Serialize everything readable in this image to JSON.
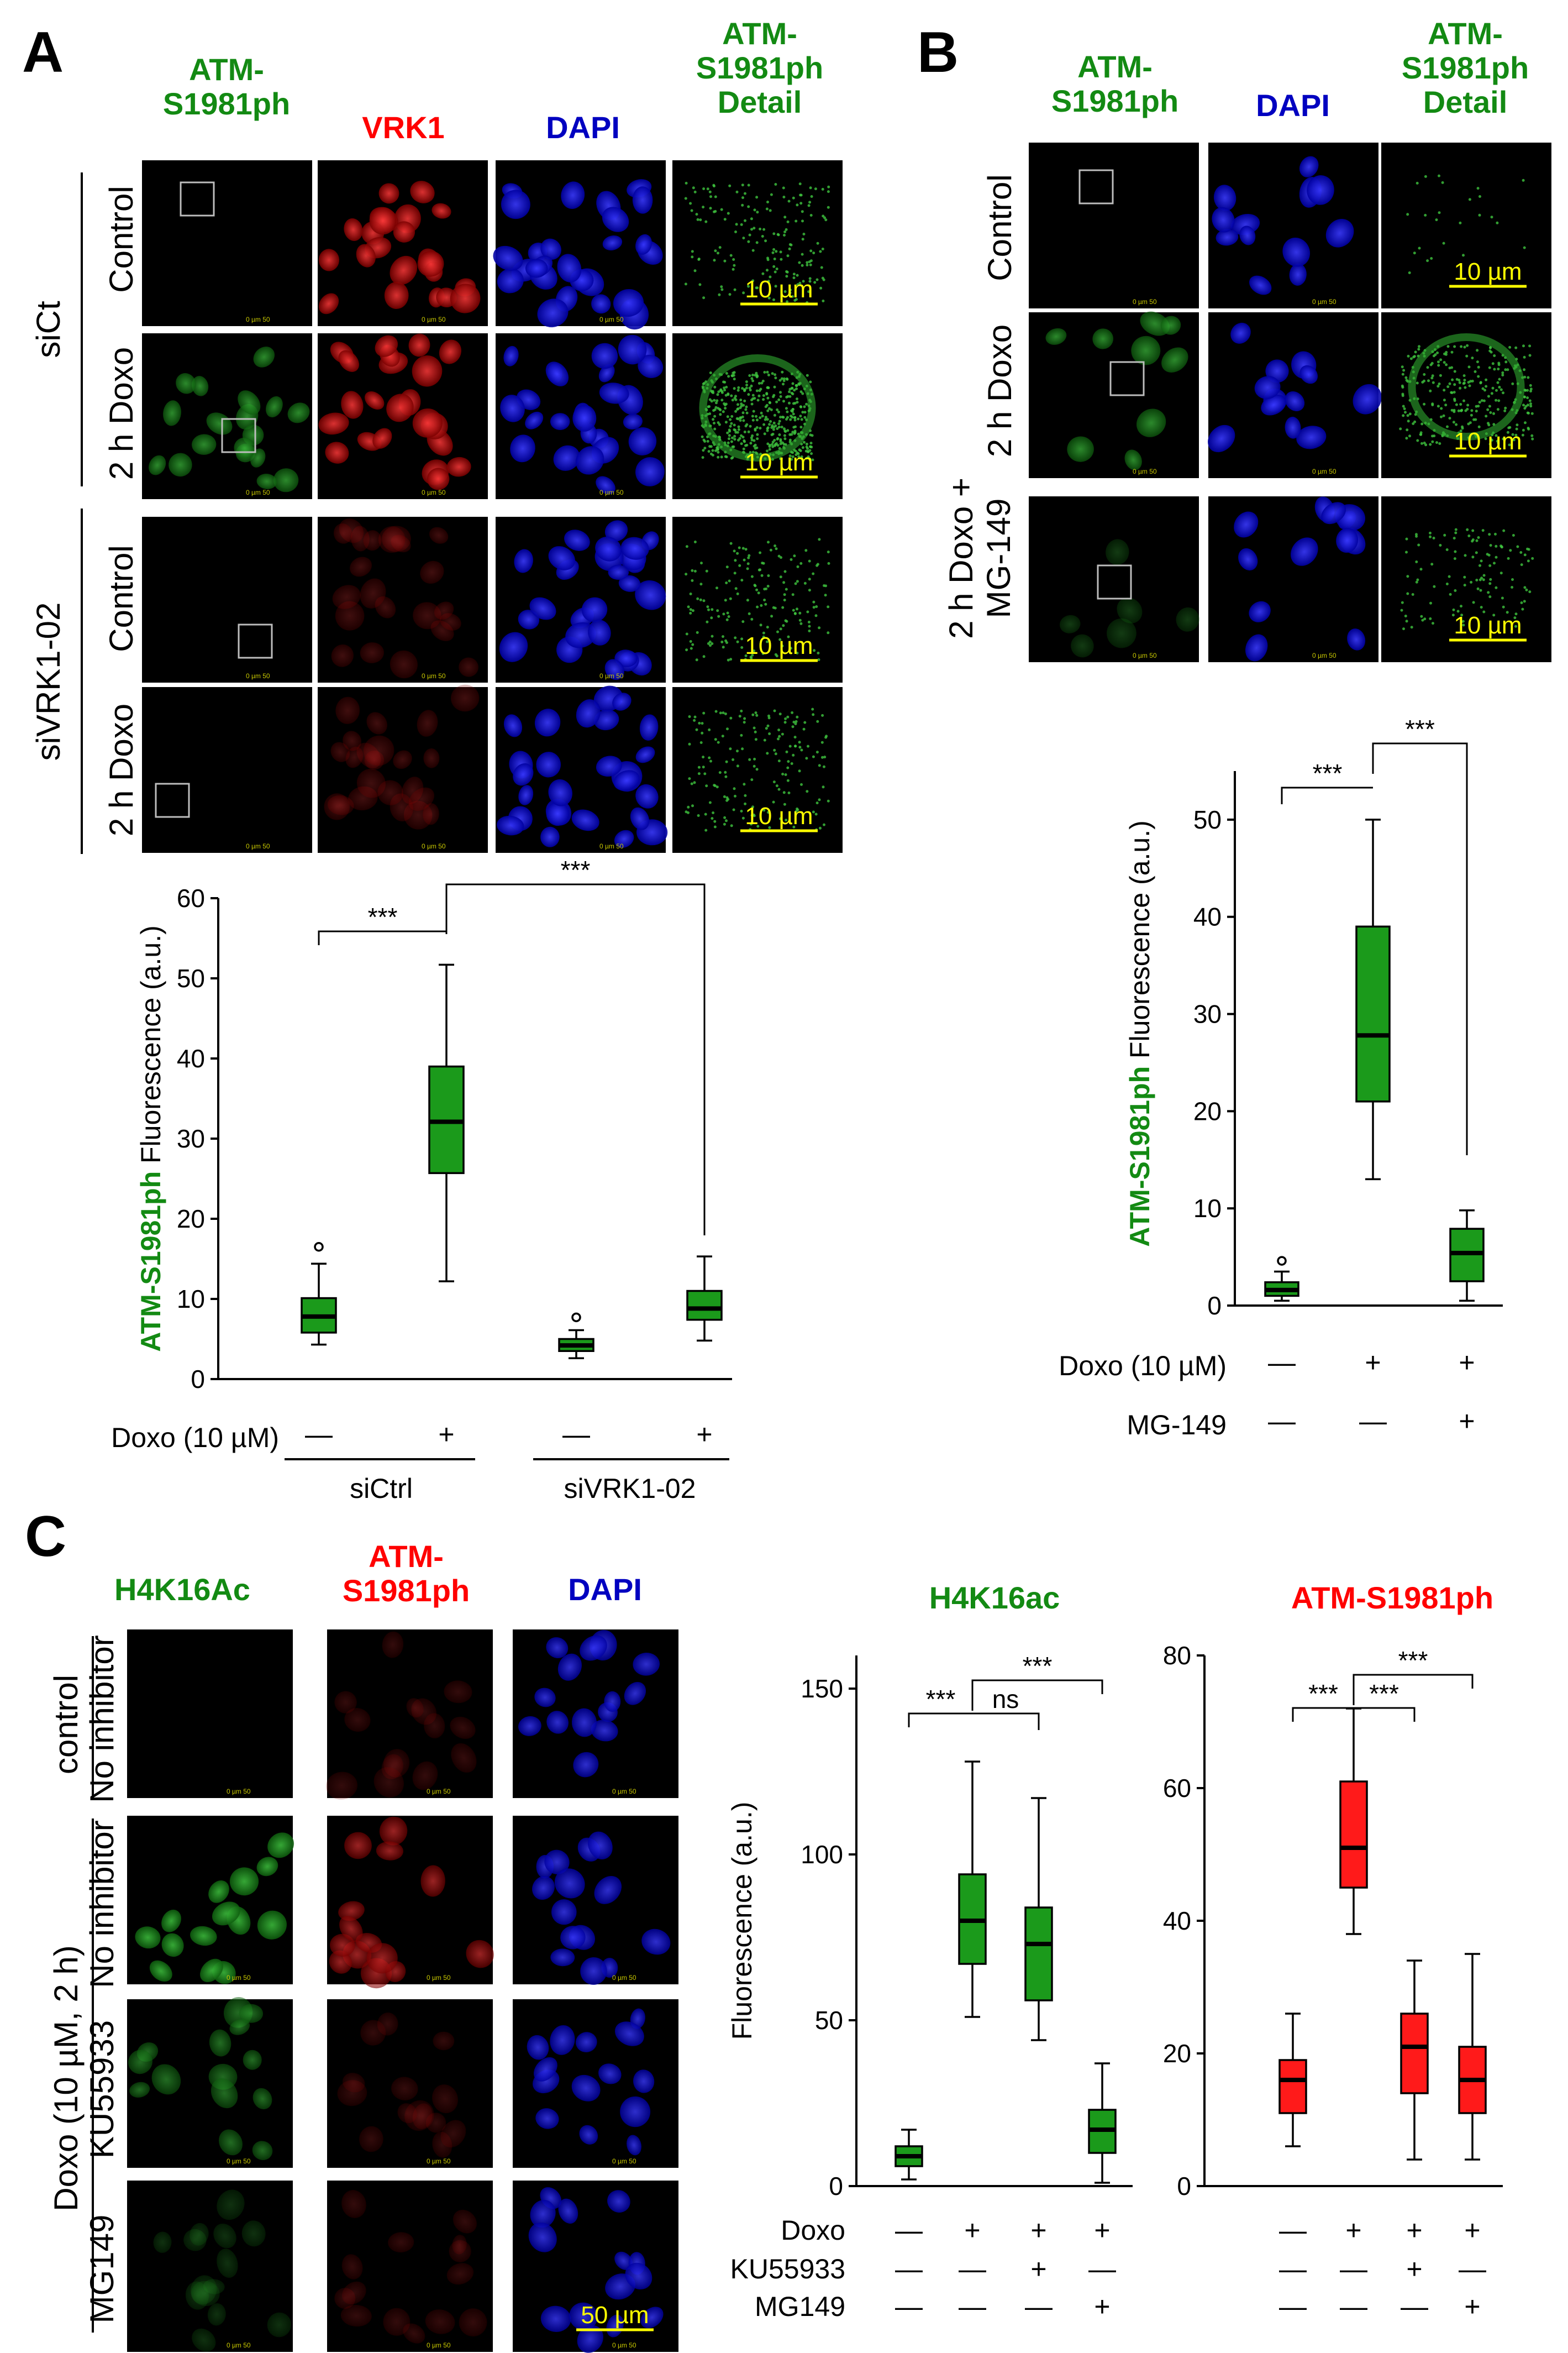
{
  "colors": {
    "green": "#138a13",
    "red": "#ff0000",
    "blue": "#0000c0",
    "yellow": "#ffff00",
    "box_green": "#1b9a1b",
    "box_red": "#ff1a1a"
  },
  "panelA": {
    "letter": "A",
    "headers": [
      "ATM-\nS1981ph",
      "VRK1",
      "DAPI",
      "ATM-\nS1981ph\nDetail"
    ],
    "groups": [
      "siCt",
      "siVRK1-02"
    ],
    "rows": [
      "Control",
      "2 h Doxo",
      "Control",
      "2 h Doxo"
    ],
    "scale": "10 µm",
    "micro_ticks": "0 µm 50",
    "chart": {
      "ylabel_colored": "ATM-S1981ph",
      "ylabel_plain": " Fluorescence (a.u.)",
      "yticks": [
        "0",
        "10",
        "20",
        "30",
        "40",
        "50",
        "60"
      ],
      "cond_label": "Doxo (10 µM)",
      "doxo": [
        "—",
        "+",
        "—",
        "+"
      ],
      "groups": [
        "siCtrl",
        "siVRK1-02"
      ],
      "sig": [
        "***",
        "***"
      ]
    }
  },
  "panelB": {
    "letter": "B",
    "headers": [
      "ATM-\nS1981ph",
      "DAPI",
      "ATM-\nS1981ph\nDetail"
    ],
    "rows": [
      "Control",
      "2 h Doxo",
      "2 h Doxo +\nMG-149"
    ],
    "scale": "10 µm",
    "chart": {
      "ylabel_colored": "ATM-S1981ph",
      "ylabel_plain": " Fluorescence (a.u.)",
      "yticks": [
        "0",
        "10",
        "20",
        "30",
        "40",
        "50"
      ],
      "cond1": "Doxo (10 µM)",
      "cond2": "MG-149",
      "doxo": [
        "—",
        "+",
        "+"
      ],
      "mg": [
        "—",
        "—",
        "+"
      ],
      "sig": [
        "***",
        "***"
      ]
    }
  },
  "panelC": {
    "letter": "C",
    "headers": [
      "H4K16Ac",
      "ATM-\nS1981ph",
      "DAPI"
    ],
    "group_left": "Doxo (10 µM, 2 h)",
    "group_top": "control",
    "rows": [
      "No inhibitor",
      "No inhibitor",
      "KU55933",
      "MG149"
    ],
    "scale": "50 µm",
    "chart1": {
      "title": "H4K16ac",
      "yticks": [
        "0",
        "50",
        "100",
        "150"
      ],
      "sig": [
        "***",
        "ns",
        "***"
      ]
    },
    "chart2": {
      "title": "ATM-S1981ph",
      "yticks": [
        "0",
        "20",
        "40",
        "60",
        "80"
      ],
      "sig": [
        "***",
        "***",
        "***"
      ]
    },
    "ylabel": "Fluorescence (a.u.)",
    "cond_rows": [
      {
        "label": "Doxo",
        "marks": [
          "—",
          "+",
          "+",
          "+"
        ]
      },
      {
        "label": "KU55933",
        "marks": [
          "—",
          "—",
          "+",
          "—"
        ]
      },
      {
        "label": "MG149",
        "marks": [
          "—",
          "—",
          "—",
          "+"
        ]
      }
    ]
  },
  "chart_data": [
    {
      "type": "box",
      "panel": "A",
      "categories": [
        "siCtrl Doxo−",
        "siCtrl Doxo+",
        "siVRK1-02 Doxo−",
        "siVRK1-02 Doxo+"
      ],
      "ylim": [
        0,
        60
      ],
      "series": [
        {
          "boxes": [
            {
              "min": 4.3,
              "q1": 5.8,
              "median": 7.8,
              "q3": 10.1,
              "max": 14.4,
              "outliers": [
                16.5
              ]
            },
            {
              "min": 12.2,
              "q1": 25.7,
              "median": 32.1,
              "q3": 39.0,
              "max": 51.7,
              "outliers": []
            },
            {
              "min": 2.6,
              "q1": 3.5,
              "median": 4.2,
              "q3": 5.0,
              "max": 6.1,
              "outliers": [
                7.7
              ]
            },
            {
              "min": 4.8,
              "q1": 7.4,
              "median": 8.8,
              "q3": 11.0,
              "max": 15.3,
              "outliers": []
            }
          ]
        }
      ]
    },
    {
      "type": "box",
      "panel": "B",
      "categories": [
        "Doxo− MG-149−",
        "Doxo+ MG-149−",
        "Doxo+ MG-149+"
      ],
      "ylim": [
        0,
        55
      ],
      "series": [
        {
          "boxes": [
            {
              "min": 0.5,
              "q1": 1.0,
              "median": 1.6,
              "q3": 2.4,
              "max": 3.5,
              "outliers": [
                4.6
              ]
            },
            {
              "min": 13.0,
              "q1": 21.0,
              "median": 27.8,
              "q3": 39.0,
              "max": 50.0,
              "outliers": []
            },
            {
              "min": 0.5,
              "q1": 2.5,
              "median": 5.4,
              "q3": 7.9,
              "max": 9.8,
              "outliers": []
            }
          ]
        }
      ]
    },
    {
      "type": "box",
      "panel": "C",
      "title": "H4K16ac",
      "categories": [
        "Doxo−",
        "Doxo+",
        "Doxo+ KU55933+",
        "Doxo+ MG149+"
      ],
      "ylim": [
        0,
        160
      ],
      "series": [
        {
          "boxes": [
            {
              "min": 2,
              "q1": 6,
              "median": 9,
              "q3": 12,
              "max": 17,
              "outliers": []
            },
            {
              "min": 51,
              "q1": 67,
              "median": 80,
              "q3": 94,
              "max": 128,
              "outliers": []
            },
            {
              "min": 44,
              "q1": 56,
              "median": 73,
              "q3": 84,
              "max": 117,
              "outliers": []
            },
            {
              "min": 1,
              "q1": 10,
              "median": 17,
              "q3": 23,
              "max": 37,
              "outliers": []
            }
          ]
        }
      ]
    },
    {
      "type": "box",
      "panel": "C",
      "title": "ATM-S1981ph",
      "categories": [
        "Doxo−",
        "Doxo+",
        "Doxo+ KU55933+",
        "Doxo+ MG149+"
      ],
      "ylim": [
        0,
        80
      ],
      "series": [
        {
          "boxes": [
            {
              "min": 6,
              "q1": 11,
              "median": 16,
              "q3": 19,
              "max": 26,
              "outliers": []
            },
            {
              "min": 38,
              "q1": 45,
              "median": 51,
              "q3": 61,
              "max": 72,
              "outliers": []
            },
            {
              "min": 4,
              "q1": 14,
              "median": 21,
              "q3": 26,
              "max": 34,
              "outliers": []
            },
            {
              "min": 4,
              "q1": 11,
              "median": 16,
              "q3": 21,
              "max": 35,
              "outliers": []
            }
          ]
        }
      ]
    }
  ]
}
